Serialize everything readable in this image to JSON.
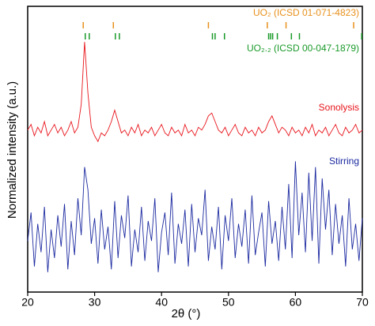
{
  "chart_data": {
    "type": "line",
    "xlabel": "2θ (°)",
    "ylabel": "Normalized intensity (a.u.)",
    "xlim": [
      20,
      70
    ],
    "xticks": [
      20,
      30,
      40,
      50,
      60,
      70
    ],
    "ylim": [
      0,
      100
    ],
    "x": [
      20,
      20.5,
      21,
      21.5,
      22,
      22.5,
      23,
      23.5,
      24,
      24.5,
      25,
      25.5,
      26,
      26.5,
      27,
      27.5,
      28,
      28.5,
      29,
      29.5,
      30,
      30.5,
      31,
      31.5,
      32,
      32.5,
      33,
      33.5,
      34,
      34.5,
      35,
      35.5,
      36,
      36.5,
      37,
      37.5,
      38,
      38.5,
      39,
      39.5,
      40,
      40.5,
      41,
      41.5,
      42,
      42.5,
      43,
      43.5,
      44,
      44.5,
      45,
      45.5,
      46,
      46.5,
      47,
      47.5,
      48,
      48.5,
      49,
      49.5,
      50,
      50.5,
      51,
      51.5,
      52,
      52.5,
      53,
      53.5,
      54,
      54.5,
      55,
      55.5,
      56,
      56.5,
      57,
      57.5,
      58,
      58.5,
      59,
      59.5,
      60,
      60.5,
      61,
      61.5,
      62,
      62.5,
      63,
      63.5,
      64,
      64.5,
      65,
      65.5,
      66,
      66.5,
      67,
      67.5,
      68,
      68.5,
      69,
      69.5,
      70
    ],
    "series": [
      {
        "name": "Sonolysis",
        "color": "#e8141b",
        "values": [
          57,
          59,
          55,
          58,
          56,
          60,
          55,
          57,
          59,
          56,
          58,
          55,
          57,
          60,
          56,
          58,
          66,
          88,
          70,
          58,
          55,
          53,
          56,
          55,
          57,
          60,
          64,
          60,
          56,
          57,
          55,
          58,
          56,
          59,
          55,
          57,
          56,
          58,
          55,
          57,
          59,
          56,
          55,
          58,
          56,
          57,
          55,
          59,
          56,
          57,
          55,
          58,
          57,
          59,
          62,
          63,
          60,
          57,
          56,
          58,
          55,
          57,
          59,
          56,
          55,
          58,
          56,
          57,
          55,
          58,
          56,
          57,
          60,
          62,
          59,
          56,
          58,
          57,
          55,
          58,
          56,
          57,
          55,
          58,
          56,
          59,
          55,
          57,
          56,
          58,
          55,
          57,
          59,
          56,
          55,
          58,
          56,
          57,
          59,
          56,
          57
        ]
      },
      {
        "name": "Stirring",
        "color": "#1c2aa0",
        "values": [
          18,
          28,
          9,
          24,
          14,
          30,
          7,
          22,
          12,
          27,
          16,
          31,
          8,
          25,
          13,
          33,
          20,
          44,
          36,
          17,
          26,
          10,
          29,
          15,
          23,
          8,
          32,
          12,
          27,
          19,
          34,
          9,
          22,
          14,
          30,
          11,
          25,
          18,
          33,
          7,
          21,
          28,
          13,
          35,
          10,
          24,
          17,
          29,
          9,
          31,
          14,
          26,
          20,
          36,
          11,
          23,
          15,
          30,
          8,
          27,
          18,
          33,
          12,
          24,
          16,
          29,
          10,
          34,
          13,
          21,
          28,
          9,
          32,
          17,
          25,
          11,
          30,
          15,
          38,
          12,
          46,
          20,
          35,
          14,
          42,
          18,
          44,
          10,
          40,
          22,
          36,
          13,
          31,
          17,
          27,
          9,
          33,
          15,
          24,
          11,
          26
        ]
      }
    ],
    "reference_patterns": [
      {
        "name": "UO₂ (ICSD 01-071-4823)",
        "color": "#e8901c",
        "positions": [
          28.3,
          32.8,
          47.0,
          55.8,
          58.6,
          68.7
        ]
      },
      {
        "name": "UO₂.₂ (ICSD 00-047-1879)",
        "color": "#1a9a2a",
        "positions": [
          28.6,
          29.2,
          33.1,
          33.7,
          47.6,
          48.0,
          49.4,
          56.0,
          56.3,
          56.6,
          57.3,
          59.4,
          60.6,
          69.9
        ]
      }
    ]
  }
}
